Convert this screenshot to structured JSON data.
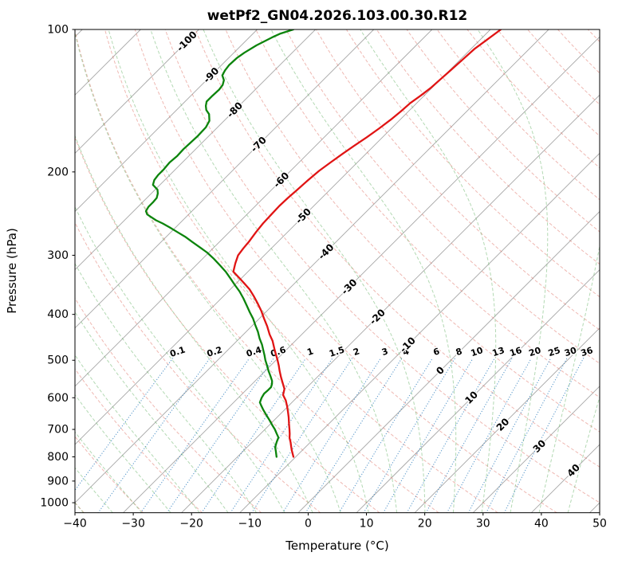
{
  "title": "wetPf2_GN04.2026.103.00.30.R12",
  "axes": {
    "x_label": "Temperature (°C)",
    "y_label": "Pressure (hPa)",
    "x_ticks": [
      -40,
      -30,
      -20,
      -10,
      0,
      10,
      20,
      30,
      40,
      50
    ],
    "y_ticks": [
      100,
      200,
      300,
      400,
      500,
      600,
      700,
      800,
      900,
      1000
    ]
  },
  "colors": {
    "temperature": "#e01414",
    "dewpoint": "#0c840c",
    "isotherm": "#a6a6a6",
    "dry_adiabat": "#df7265",
    "moist_adiabat": "#74b974",
    "mixing_ratio": "#3d87c2",
    "label_negative": "#2e7ebc",
    "label_zero": "#8c8c8c",
    "label_positive": "#cf4a4a"
  },
  "chart_data": {
    "type": "skewt_log_p",
    "title": "wetPf2_GN04.2026.103.00.30.R12",
    "x_axis": {
      "label": "Temperature (°C)",
      "range": [
        -40,
        50
      ],
      "ticks": [
        -40,
        -30,
        -20,
        -10,
        0,
        10,
        20,
        30,
        40,
        50
      ]
    },
    "y_axis": {
      "label": "Pressure (hPa)",
      "range": [
        100,
        1050
      ],
      "scale": "log",
      "ticks": [
        100,
        200,
        300,
        400,
        500,
        600,
        700,
        800,
        900,
        1000
      ]
    },
    "skew_degrees": 45,
    "series": [
      {
        "name": "temperature",
        "color": "#e01414",
        "points": [
          [
            800,
            -10.4
          ],
          [
            775,
            -11.8
          ],
          [
            760,
            -12.6
          ],
          [
            745,
            -13.4
          ],
          [
            730,
            -14.3
          ],
          [
            715,
            -15.0
          ],
          [
            700,
            -15.8
          ],
          [
            680,
            -16.9
          ],
          [
            660,
            -18.0
          ],
          [
            642,
            -19.1
          ],
          [
            625,
            -20.2
          ],
          [
            608,
            -21.4
          ],
          [
            592,
            -22.8
          ],
          [
            575,
            -23.6
          ],
          [
            560,
            -24.8
          ],
          [
            543,
            -26.2
          ],
          [
            527,
            -27.5
          ],
          [
            513,
            -28.6
          ],
          [
            500,
            -29.7
          ],
          [
            486,
            -31.0
          ],
          [
            472,
            -32.3
          ],
          [
            455,
            -33.9
          ],
          [
            441,
            -35.5
          ],
          [
            424,
            -37.3
          ],
          [
            408,
            -39.2
          ],
          [
            393,
            -41.0
          ],
          [
            379,
            -42.9
          ],
          [
            366,
            -44.8
          ],
          [
            354,
            -46.7
          ],
          [
            344,
            -48.6
          ],
          [
            335,
            -50.4
          ],
          [
            325,
            -52.5
          ],
          [
            312,
            -53.6
          ],
          [
            300,
            -54.5
          ],
          [
            290,
            -54.8
          ],
          [
            280,
            -55.0
          ],
          [
            268,
            -55.4
          ],
          [
            257,
            -55.7
          ],
          [
            246,
            -55.8
          ],
          [
            236,
            -55.9
          ],
          [
            227,
            -55.8
          ],
          [
            218,
            -55.6
          ],
          [
            208,
            -55.4
          ],
          [
            199,
            -55.1
          ],
          [
            191,
            -54.6
          ],
          [
            183,
            -54.0
          ],
          [
            176,
            -53.4
          ],
          [
            169,
            -52.7
          ],
          [
            162,
            -52.1
          ],
          [
            155,
            -51.6
          ],
          [
            149,
            -51.3
          ],
          [
            143,
            -51.1
          ],
          [
            138,
            -50.6
          ],
          [
            133,
            -50.2
          ],
          [
            127,
            -50.0
          ],
          [
            122,
            -49.8
          ],
          [
            116,
            -49.6
          ],
          [
            110,
            -49.4
          ],
          [
            105,
            -48.8
          ],
          [
            100,
            -48.2
          ]
        ]
      },
      {
        "name": "dewpoint",
        "color": "#0c840c",
        "points": [
          [
            800,
            -13.3
          ],
          [
            780,
            -14.3
          ],
          [
            763,
            -15.2
          ],
          [
            745,
            -15.8
          ],
          [
            728,
            -16.3
          ],
          [
            714,
            -17.3
          ],
          [
            700,
            -18.3
          ],
          [
            684,
            -19.6
          ],
          [
            668,
            -20.9
          ],
          [
            652,
            -22.3
          ],
          [
            637,
            -23.6
          ],
          [
            625,
            -24.6
          ],
          [
            614,
            -25.5
          ],
          [
            600,
            -26.0
          ],
          [
            588,
            -26.3
          ],
          [
            578,
            -26.2
          ],
          [
            570,
            -26.2
          ],
          [
            561,
            -26.6
          ],
          [
            553,
            -27.1
          ],
          [
            540,
            -28.2
          ],
          [
            527,
            -29.4
          ],
          [
            513,
            -30.6
          ],
          [
            500,
            -31.8
          ],
          [
            488,
            -32.8
          ],
          [
            477,
            -33.8
          ],
          [
            463,
            -35.1
          ],
          [
            450,
            -36.5
          ],
          [
            435,
            -38.0
          ],
          [
            421,
            -39.6
          ],
          [
            408,
            -41.1
          ],
          [
            396,
            -42.7
          ],
          [
            383,
            -44.4
          ],
          [
            370,
            -46.2
          ],
          [
            358,
            -48.0
          ],
          [
            347,
            -49.9
          ],
          [
            336,
            -51.8
          ],
          [
            325,
            -53.8
          ],
          [
            315,
            -55.9
          ],
          [
            305,
            -58.1
          ],
          [
            296,
            -60.3
          ],
          [
            288,
            -62.6
          ],
          [
            281,
            -64.7
          ],
          [
            274,
            -66.8
          ],
          [
            268,
            -68.9
          ],
          [
            262,
            -71.0
          ],
          [
            257,
            -72.9
          ],
          [
            253,
            -74.6
          ],
          [
            249,
            -76.0
          ],
          [
            246,
            -77.1
          ],
          [
            242,
            -77.9
          ],
          [
            237,
            -78.2
          ],
          [
            232,
            -78.2
          ],
          [
            227,
            -78.3
          ],
          [
            222,
            -78.9
          ],
          [
            218,
            -79.6
          ],
          [
            213,
            -81.2
          ],
          [
            208,
            -81.8
          ],
          [
            203,
            -82.0
          ],
          [
            198,
            -82.0
          ],
          [
            191,
            -82.2
          ],
          [
            185,
            -82.0
          ],
          [
            179,
            -82.1
          ],
          [
            174,
            -82.0
          ],
          [
            168,
            -81.9
          ],
          [
            161,
            -82.0
          ],
          [
            156,
            -82.5
          ],
          [
            151,
            -83.7
          ],
          [
            148,
            -84.9
          ],
          [
            145,
            -85.7
          ],
          [
            142,
            -86.3
          ],
          [
            138,
            -86.3
          ],
          [
            134,
            -86.2
          ],
          [
            131,
            -86.4
          ],
          [
            128,
            -87.0
          ],
          [
            125,
            -88.1
          ],
          [
            122,
            -88.5
          ],
          [
            119,
            -88.7
          ],
          [
            115,
            -88.6
          ],
          [
            112,
            -88.2
          ],
          [
            108,
            -87.4
          ],
          [
            104,
            -86.1
          ],
          [
            102,
            -85.3
          ],
          [
            100,
            -83.8
          ]
        ]
      }
    ],
    "isotherms": {
      "start": -120,
      "end": 50,
      "step": 10,
      "color": "#a6a6a6",
      "labels": [
        {
          "t": -100,
          "p": 106
        },
        {
          "t": -90,
          "p": 125
        },
        {
          "t": -80,
          "p": 148
        },
        {
          "t": -70,
          "p": 175
        },
        {
          "t": -60,
          "p": 208
        },
        {
          "t": -50,
          "p": 248
        },
        {
          "t": -40,
          "p": 295
        },
        {
          "t": -30,
          "p": 350
        },
        {
          "t": -20,
          "p": 405
        },
        {
          "t": -10,
          "p": 464
        },
        {
          "t": 0,
          "p": 526
        },
        {
          "t": 10,
          "p": 600
        },
        {
          "t": 20,
          "p": 684
        },
        {
          "t": 30,
          "p": 760
        },
        {
          "t": 40,
          "p": 855
        }
      ],
      "label_colors": {
        "negative": "#2e7ebc",
        "zero": "#8c8c8c",
        "positive": "#cf4a4a"
      }
    },
    "dry_adiabats": {
      "start": -40,
      "end": 200,
      "step": 10,
      "color": "#df7265"
    },
    "moist_adiabats": {
      "start": -40,
      "end": 45,
      "step": 5,
      "color": "#74b974"
    },
    "mixing_ratio_lines": {
      "values": [
        0.1,
        0.2,
        0.4,
        0.6,
        1,
        1.5,
        2,
        3,
        4,
        6,
        8,
        10,
        13,
        16,
        20,
        25,
        30,
        36
      ],
      "label_pressure": 480,
      "top_pressure": 495,
      "color": "#3d87c2",
      "label_color": "#2e7ebc"
    }
  }
}
